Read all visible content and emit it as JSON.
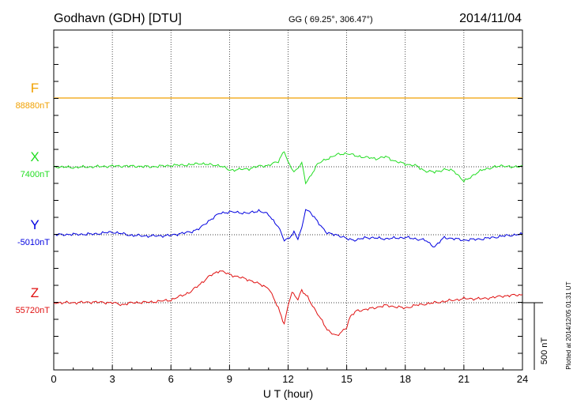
{
  "header": {
    "station": "Godhavn (GDH)  [DTU]",
    "coords": "GG ( 69.25°, 306.47°)",
    "date": "2014/11/04"
  },
  "plot_footer": "Plotted at 2014/12/05 01:31  UT",
  "scale_bar": {
    "label": "500 nT",
    "value": 500
  },
  "chart_data": {
    "type": "line",
    "title": "Godhavn (GDH)  [DTU]",
    "xlabel": "U T (hour)",
    "xlim": [
      0,
      24
    ],
    "xticks": [
      0,
      3,
      6,
      9,
      12,
      15,
      18,
      21,
      24
    ],
    "grid": true,
    "series": [
      {
        "name": "F",
        "baseline_label": "88880nT",
        "color": "#f0a000",
        "offsets": [
          [
            0,
            0
          ],
          [
            24,
            0
          ]
        ]
      },
      {
        "name": "X",
        "baseline_label": "7400nT",
        "color": "#22dd22",
        "offsets": [
          [
            0,
            0
          ],
          [
            1,
            -5
          ],
          [
            2,
            0
          ],
          [
            3,
            5
          ],
          [
            4,
            5
          ],
          [
            5,
            0
          ],
          [
            6,
            10
          ],
          [
            7,
            15
          ],
          [
            7.5,
            25
          ],
          [
            8,
            15
          ],
          [
            8.5,
            10
          ],
          [
            9,
            -25
          ],
          [
            10,
            -15
          ],
          [
            10.5,
            5
          ],
          [
            11,
            10
          ],
          [
            11.5,
            40
          ],
          [
            11.8,
            120
          ],
          [
            12,
            30
          ],
          [
            12.3,
            -40
          ],
          [
            12.5,
            -10
          ],
          [
            12.7,
            30
          ],
          [
            12.9,
            -120
          ],
          [
            13.1,
            -80
          ],
          [
            13.5,
            20
          ],
          [
            14,
            60
          ],
          [
            14.5,
            90
          ],
          [
            15,
            100
          ],
          [
            15.5,
            80
          ],
          [
            16,
            70
          ],
          [
            16.5,
            60
          ],
          [
            17,
            75
          ],
          [
            17.5,
            40
          ],
          [
            18,
            20
          ],
          [
            18.5,
            10
          ],
          [
            19,
            -30
          ],
          [
            19.5,
            -40
          ],
          [
            20,
            -20
          ],
          [
            20.5,
            -30
          ],
          [
            21,
            -110
          ],
          [
            21.5,
            -60
          ],
          [
            22,
            -20
          ],
          [
            23,
            10
          ],
          [
            23.5,
            -5
          ],
          [
            24,
            10
          ]
        ]
      },
      {
        "name": "Y",
        "baseline_label": "-5010nT",
        "color": "#0000e0",
        "offsets": [
          [
            0,
            0
          ],
          [
            2,
            5
          ],
          [
            3,
            20
          ],
          [
            4,
            -5
          ],
          [
            5,
            -10
          ],
          [
            6,
            -5
          ],
          [
            6.5,
            10
          ],
          [
            7,
            20
          ],
          [
            7.5,
            50
          ],
          [
            8,
            110
          ],
          [
            8.5,
            160
          ],
          [
            9,
            170
          ],
          [
            10,
            160
          ],
          [
            10.5,
            180
          ],
          [
            11,
            150
          ],
          [
            11.5,
            60
          ],
          [
            11.8,
            -40
          ],
          [
            12,
            -30
          ],
          [
            12.3,
            20
          ],
          [
            12.5,
            -30
          ],
          [
            12.7,
            50
          ],
          [
            12.9,
            190
          ],
          [
            13.1,
            170
          ],
          [
            13.5,
            100
          ],
          [
            14,
            10
          ],
          [
            14.5,
            0
          ],
          [
            15,
            -30
          ],
          [
            15.5,
            -40
          ],
          [
            16,
            -20
          ],
          [
            17,
            -30
          ],
          [
            18,
            -20
          ],
          [
            19,
            -40
          ],
          [
            19.5,
            -90
          ],
          [
            20,
            -20
          ],
          [
            21,
            -40
          ],
          [
            22,
            -30
          ],
          [
            23,
            -10
          ],
          [
            24,
            5
          ]
        ]
      },
      {
        "name": "Z",
        "baseline_label": "55720nT",
        "color": "#e01010",
        "offsets": [
          [
            0,
            0
          ],
          [
            1,
            0
          ],
          [
            2,
            5
          ],
          [
            3,
            0
          ],
          [
            3.5,
            -15
          ],
          [
            4,
            0
          ],
          [
            5,
            5
          ],
          [
            6,
            20
          ],
          [
            7,
            80
          ],
          [
            7.5,
            140
          ],
          [
            8,
            200
          ],
          [
            8.5,
            240
          ],
          [
            9,
            210
          ],
          [
            10,
            170
          ],
          [
            11,
            110
          ],
          [
            11.5,
            -40
          ],
          [
            11.8,
            -160
          ],
          [
            12,
            -20
          ],
          [
            12.2,
            80
          ],
          [
            12.5,
            30
          ],
          [
            12.7,
            90
          ],
          [
            13,
            40
          ],
          [
            13.5,
            -80
          ],
          [
            14,
            -200
          ],
          [
            14.5,
            -250
          ],
          [
            15,
            -180
          ],
          [
            15.2,
            -100
          ],
          [
            15.5,
            -60
          ],
          [
            16,
            -50
          ],
          [
            17,
            -20
          ],
          [
            18,
            -40
          ],
          [
            18.5,
            -20
          ],
          [
            19,
            -10
          ],
          [
            20,
            10
          ],
          [
            21,
            30
          ],
          [
            22,
            30
          ],
          [
            23,
            50
          ],
          [
            24,
            60
          ]
        ]
      }
    ]
  }
}
